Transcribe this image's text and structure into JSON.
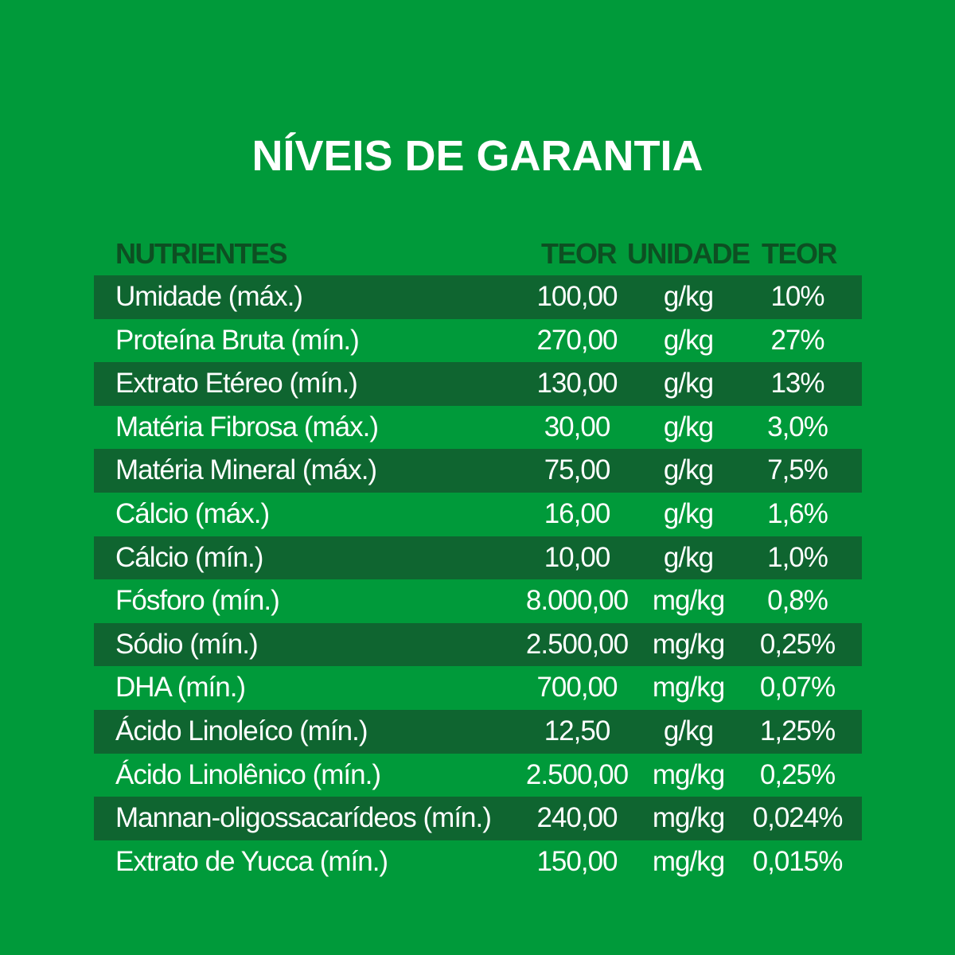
{
  "title": "NÍVEIS DE GARANTIA",
  "headers": {
    "nutrient": "NUTRIENTES",
    "value": "TEOR",
    "unit": "UNIDADE",
    "percent": "TEOR"
  },
  "colors": {
    "background": "#009a3a",
    "band": "#0f6530",
    "header_text": "#0d4f22"
  },
  "rows": [
    {
      "name": "Umidade (máx.)",
      "value": "100,00",
      "unit": "g/kg",
      "percent": "10%"
    },
    {
      "name": "Proteína Bruta (mín.)",
      "value": "270,00",
      "unit": "g/kg",
      "percent": "27%"
    },
    {
      "name": "Extrato Etéreo (mín.)",
      "value": "130,00",
      "unit": "g/kg",
      "percent": "13%"
    },
    {
      "name": "Matéria Fibrosa (máx.)",
      "value": "30,00",
      "unit": "g/kg",
      "percent": "3,0%"
    },
    {
      "name": "Matéria Mineral (máx.)",
      "value": "75,00",
      "unit": "g/kg",
      "percent": "7,5%"
    },
    {
      "name": "Cálcio (máx.)",
      "value": "16,00",
      "unit": "g/kg",
      "percent": "1,6%"
    },
    {
      "name": "Cálcio (mín.)",
      "value": "10,00",
      "unit": "g/kg",
      "percent": "1,0%"
    },
    {
      "name": "Fósforo (mín.)",
      "value": "8.000,00",
      "unit": "mg/kg",
      "percent": "0,8%"
    },
    {
      "name": "Sódio (mín.)",
      "value": "2.500,00",
      "unit": "mg/kg",
      "percent": "0,25%"
    },
    {
      "name": "DHA (mín.)",
      "value": "700,00",
      "unit": "mg/kg",
      "percent": "0,07%"
    },
    {
      "name": "Ácido Linoleíco (mín.)",
      "value": "12,50",
      "unit": "g/kg",
      "percent": "1,25%"
    },
    {
      "name": "Ácido Linolênico (mín.)",
      "value": "2.500,00",
      "unit": "mg/kg",
      "percent": "0,25%"
    },
    {
      "name": "Mannan-oligossacarídeos (mín.)",
      "value": "240,00",
      "unit": "mg/kg",
      "percent": "0,024%"
    },
    {
      "name": "Extrato de Yucca (mín.)",
      "value": "150,00",
      "unit": "mg/kg",
      "percent": "0,015%"
    }
  ]
}
